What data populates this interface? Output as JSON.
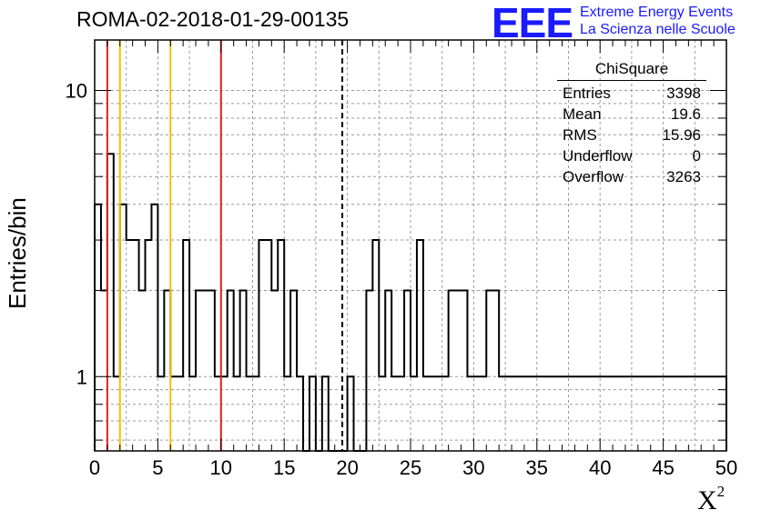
{
  "header": {
    "title": "ROMA-02-2018-01-29-00135",
    "logo_letters": "EEE",
    "logo_line1": "Extreme Energy Events",
    "logo_line2": "La Scienza nelle Scuole"
  },
  "axes": {
    "ylabel": "Entries/bin",
    "xlabel_base": "X",
    "xlabel_sup": "2"
  },
  "stats": {
    "title": "ChiSquare",
    "rows": [
      {
        "label": "Entries",
        "value": "3398"
      },
      {
        "label": "Mean",
        "value": "19.6"
      },
      {
        "label": "RMS",
        "value": "15.96"
      },
      {
        "label": "Underflow",
        "value": "0"
      },
      {
        "label": "Overflow",
        "value": "3263"
      }
    ]
  },
  "colors": {
    "red_line": "#dd2222",
    "yellow_line": "#f2c200",
    "logo_blue": "#1a1aff"
  },
  "chart_data": {
    "type": "histogram",
    "title": "ROMA-02-2018-01-29-00135",
    "xlabel": "X²",
    "ylabel": "Entries/bin",
    "xlim": [
      0,
      50
    ],
    "ylim": [
      0.55,
      15
    ],
    "yscale": "log",
    "grid": true,
    "bin_width": 0.5,
    "xticks": [
      0,
      5,
      10,
      15,
      20,
      25,
      30,
      35,
      40,
      45,
      50
    ],
    "yticks": [
      1,
      10
    ],
    "values": [
      4,
      2,
      6,
      1,
      4,
      3,
      3,
      2,
      3,
      4,
      1,
      2,
      1,
      1,
      3,
      1,
      2,
      2,
      2,
      1,
      1,
      2,
      1,
      2,
      1,
      1,
      3,
      3,
      2,
      3,
      1,
      2,
      1,
      0,
      1,
      0,
      1,
      0,
      0,
      0,
      1,
      0,
      0,
      2,
      3,
      1,
      2,
      1,
      1,
      2,
      1,
      3,
      1,
      1,
      1,
      1,
      2,
      2,
      2,
      1,
      1,
      1,
      2,
      2,
      1,
      1,
      1,
      1,
      1,
      1,
      1,
      1,
      1,
      1,
      1,
      1,
      1,
      1,
      1,
      1,
      1,
      1,
      1,
      1,
      1,
      1,
      1,
      1,
      1,
      1,
      1,
      1,
      1,
      1,
      1,
      1,
      1,
      1,
      1,
      1
    ],
    "vertical_lines": [
      {
        "x": 1,
        "style": "solid",
        "color": "red"
      },
      {
        "x": 2,
        "style": "solid",
        "color": "yellow"
      },
      {
        "x": 6,
        "style": "solid",
        "color": "yellow"
      },
      {
        "x": 10,
        "style": "solid",
        "color": "red"
      },
      {
        "x": 19.6,
        "style": "dashed",
        "color": "black"
      }
    ],
    "legend": "top-right"
  }
}
